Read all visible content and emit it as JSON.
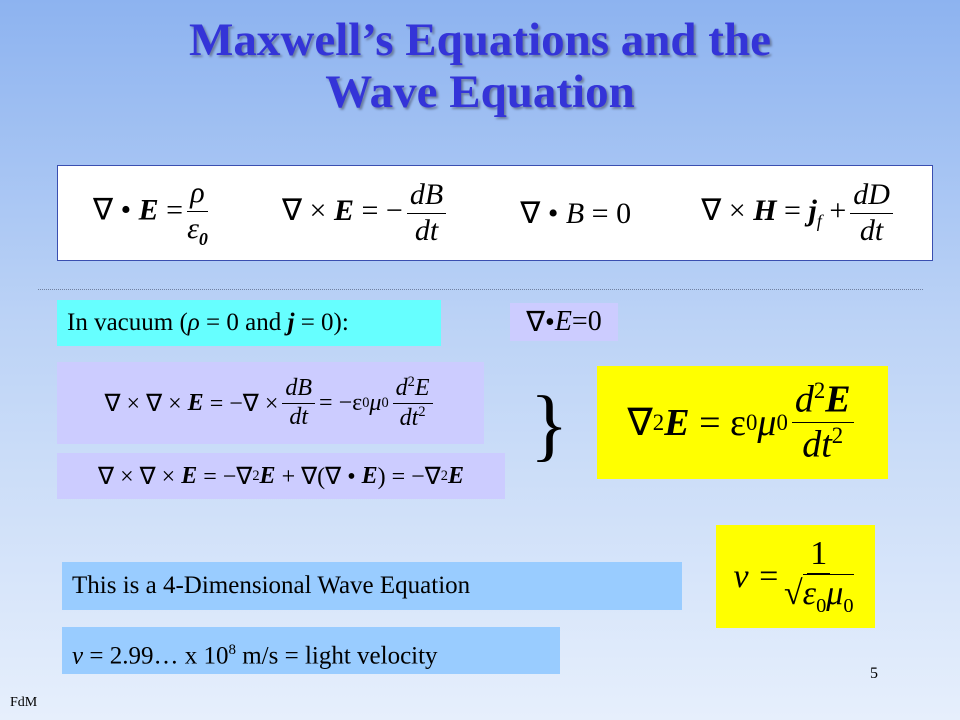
{
  "title": [
    "Maxwell’s Equations and the",
    "Wave Equation"
  ],
  "maxwell": [
    {
      "parts": [
        "∇ •",
        "E",
        "=",
        "ρ",
        "ε",
        "0"
      ]
    },
    {
      "parts": [
        "∇ ×",
        "E",
        "= −",
        "dB",
        "dt"
      ]
    },
    {
      "parts": [
        "∇ •",
        "B",
        "= 0"
      ]
    },
    {
      "parts": [
        "∇ ×",
        "H",
        "=",
        "j",
        "f",
        "+",
        "dD",
        "dt"
      ]
    }
  ],
  "vacuum": {
    "parts": [
      "In vacuum (",
      "ρ",
      " = 0 and ",
      "j",
      " = 0):"
    ]
  },
  "div_e": {
    "parts": [
      "∇•",
      "E",
      "=0"
    ]
  },
  "curl_curl_1": {
    "parts": [
      "∇ × ∇ ×",
      "E",
      "= −∇ ×",
      "dB",
      "dt",
      "= −ε",
      "0",
      "μ",
      "0",
      "d",
      "2",
      "E",
      "dt",
      "2"
    ]
  },
  "curl_curl_2": {
    "parts": [
      "∇ × ∇ ×",
      "E",
      "= −∇",
      "2",
      "E",
      "+ ∇(∇ •",
      "E",
      ") = −∇",
      "2",
      "E"
    ]
  },
  "brace": "}",
  "wave": {
    "parts": [
      "∇",
      "2",
      "E",
      "= ε",
      "0",
      "μ",
      "0",
      "d",
      "2",
      "E",
      "dt",
      "2"
    ]
  },
  "statement": "This is a 4-Dimensional Wave Equation",
  "speed": {
    "parts": [
      "v =",
      "1",
      "√",
      "ε",
      "0",
      "μ",
      "0"
    ]
  },
  "light": {
    "parts": [
      "v",
      " = 2.99… x 10",
      "8",
      " m/s = light velocity"
    ]
  },
  "page_number": "5",
  "footer": "FdM"
}
